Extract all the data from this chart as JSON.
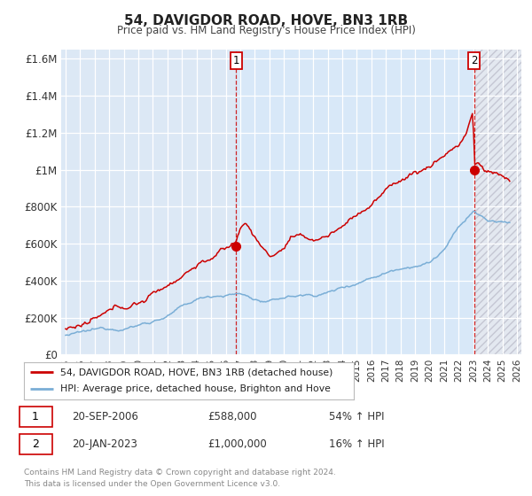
{
  "title": "54, DAVIGDOR ROAD, HOVE, BN3 1RB",
  "subtitle": "Price paid vs. HM Land Registry's House Price Index (HPI)",
  "bg_color": "#ffffff",
  "plot_bg_left": "#dce8f5",
  "plot_bg_center": "#dce8f5",
  "plot_bg_right": "#dce8f5",
  "grid_color": "#ffffff",
  "red_color": "#cc0000",
  "blue_color": "#7aaed6",
  "ylim": [
    0,
    1650000
  ],
  "xlim_min": 1994.7,
  "xlim_max": 2026.3,
  "sale1_x": 2006.72,
  "sale1_y": 588000,
  "sale2_x": 2023.05,
  "sale2_y": 1000000,
  "legend_line1": "54, DAVIGDOR ROAD, HOVE, BN3 1RB (detached house)",
  "legend_line2": "HPI: Average price, detached house, Brighton and Hove",
  "sale1_date": "20-SEP-2006",
  "sale1_price": "£588,000",
  "sale1_hpi": "54% ↑ HPI",
  "sale2_date": "20-JAN-2023",
  "sale2_price": "£1,000,000",
  "sale2_hpi": "16% ↑ HPI",
  "footer_line1": "Contains HM Land Registry data © Crown copyright and database right 2024.",
  "footer_line2": "This data is licensed under the Open Government Licence v3.0.",
  "yticks": [
    0,
    200000,
    400000,
    600000,
    800000,
    1000000,
    1200000,
    1400000,
    1600000
  ],
  "ytick_labels": [
    "£0",
    "£200K",
    "£400K",
    "£600K",
    "£800K",
    "£1M",
    "£1.2M",
    "£1.4M",
    "£1.6M"
  ],
  "xticks": [
    1995,
    1996,
    1997,
    1998,
    1999,
    2000,
    2001,
    2002,
    2003,
    2004,
    2005,
    2006,
    2007,
    2008,
    2009,
    2010,
    2011,
    2012,
    2013,
    2014,
    2015,
    2016,
    2017,
    2018,
    2019,
    2020,
    2021,
    2022,
    2023,
    2024,
    2025,
    2026
  ]
}
